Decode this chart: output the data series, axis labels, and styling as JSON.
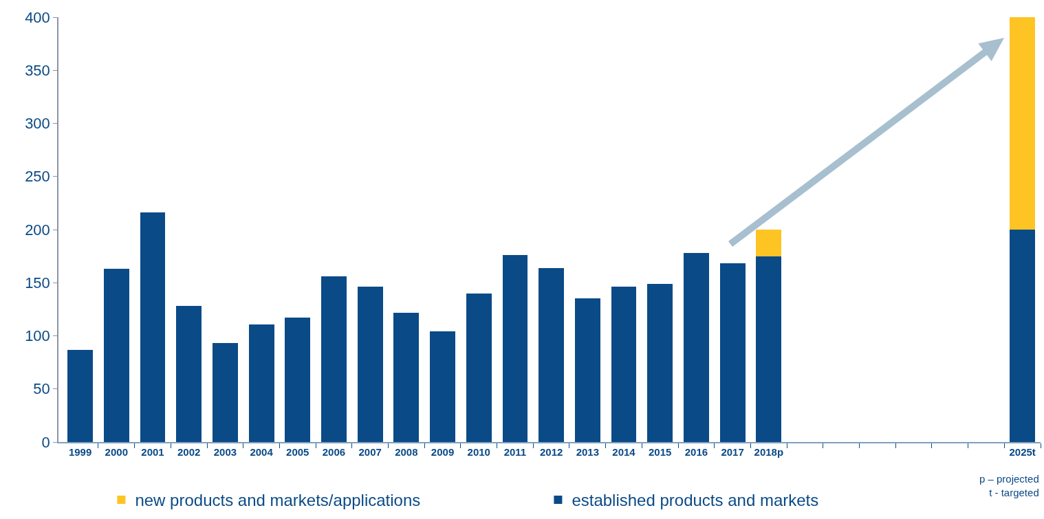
{
  "chart_data": {
    "type": "bar",
    "stacked": true,
    "categories": [
      "1999",
      "2000",
      "2001",
      "2002",
      "2003",
      "2004",
      "2005",
      "2006",
      "2007",
      "2008",
      "2009",
      "2010",
      "2011",
      "2012",
      "2013",
      "2014",
      "2015",
      "2016",
      "2017",
      "2018p",
      null,
      null,
      null,
      null,
      null,
      null,
      "2025t"
    ],
    "series": [
      {
        "name": "established products and markets",
        "color": "#0a4a87",
        "values": [
          87,
          163,
          216,
          128,
          93,
          111,
          117,
          156,
          146,
          122,
          104,
          140,
          176,
          164,
          135,
          146,
          149,
          178,
          168,
          175,
          null,
          null,
          null,
          null,
          null,
          null,
          200
        ]
      },
      {
        "name": "new products and markets/applications",
        "color": "#fdc424",
        "values": [
          null,
          null,
          null,
          null,
          null,
          null,
          null,
          null,
          null,
          null,
          null,
          null,
          null,
          null,
          null,
          null,
          null,
          null,
          null,
          25,
          null,
          null,
          null,
          null,
          null,
          null,
          200
        ]
      }
    ],
    "ylim": [
      0,
      400
    ],
    "yticks": [
      0,
      50,
      100,
      150,
      200,
      250,
      300,
      350,
      400
    ],
    "grid": false,
    "legend": "bottom",
    "annotations": [
      "p – projected\nt - targeted"
    ]
  }
}
